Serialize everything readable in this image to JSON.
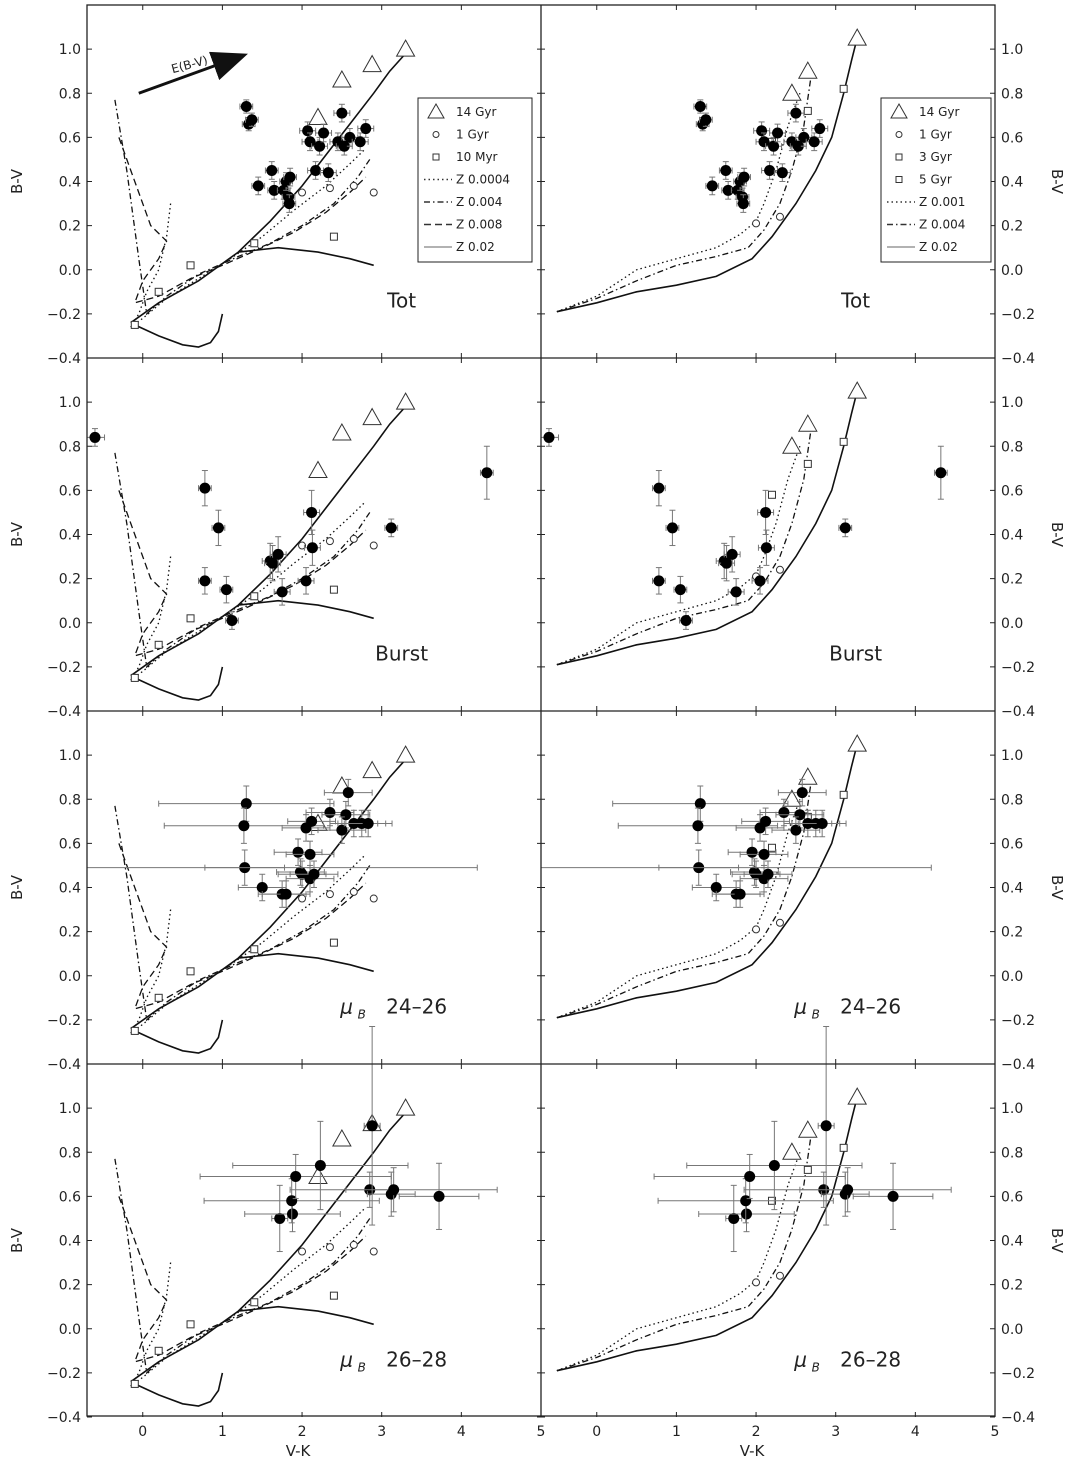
{
  "chart_data": {
    "type": "scatter",
    "xlabel": "V-K",
    "ylabel": "B-V",
    "xlim": [
      -0.7,
      5
    ],
    "ylim": [
      -0.4,
      1.2
    ],
    "xticks": [
      0,
      1,
      2,
      3,
      4,
      5
    ],
    "yticks": [
      -0.4,
      -0.2,
      0.0,
      0.2,
      0.4,
      0.6,
      0.8,
      1.0
    ],
    "ytick_labels": [
      "−0.4",
      "−0.2",
      "0.0",
      "0.2",
      "0.4",
      "0.6",
      "0.8",
      "1.0"
    ],
    "reddening_vector": {
      "label": "E(B-V)",
      "from": [
        -0.05,
        0.8
      ],
      "to": [
        1.25,
        0.97
      ]
    },
    "legends": {
      "left": [
        "14 Gyr",
        "1 Gyr",
        "10 Myr",
        "Z 0.0004",
        "Z 0.004",
        "Z 0.008",
        "Z 0.02"
      ],
      "right": [
        "14 Gyr",
        "1 Gyr",
        "3 Gyr",
        "5 Gyr",
        "Z 0.001",
        "Z 0.004",
        "Z 0.02"
      ]
    },
    "models": {
      "left": [
        {
          "name": "Z 0.0004",
          "style": "dotted",
          "x": [
            0.35,
            0.3,
            0.2,
            0.05,
            -0.05,
            -0.15,
            0.0,
            0.3,
            0.7,
            1.1,
            1.5,
            1.9,
            2.3,
            2.6,
            2.8
          ],
          "y": [
            0.3,
            0.15,
            0.0,
            -0.1,
            -0.2,
            -0.26,
            -0.22,
            -0.13,
            -0.04,
            0.05,
            0.15,
            0.27,
            0.38,
            0.48,
            0.55
          ]
        },
        {
          "name": "Z 0.004",
          "style": "dashdot",
          "x": [
            -0.35,
            -0.2,
            -0.05,
            0.05,
            0.3,
            0.7,
            1.2,
            1.6,
            2.0,
            2.4,
            2.7,
            2.85
          ],
          "y": [
            0.77,
            0.45,
            0.05,
            -0.2,
            -0.12,
            -0.02,
            0.06,
            0.12,
            0.2,
            0.3,
            0.42,
            0.5
          ]
        },
        {
          "name": "Z 0.008",
          "style": "dashed",
          "x": [
            -0.3,
            -0.15,
            0.1,
            0.3,
            0.2,
            0.0,
            -0.1,
            0.2,
            0.6,
            1.0,
            1.5,
            1.9,
            2.3,
            2.6,
            2.8
          ],
          "y": [
            0.6,
            0.45,
            0.2,
            0.13,
            0.05,
            -0.05,
            -0.15,
            -0.12,
            -0.04,
            0.02,
            0.1,
            0.17,
            0.26,
            0.35,
            0.42
          ]
        },
        {
          "name": "Z 0.02",
          "style": "solid",
          "x": [
            -0.15,
            0.2,
            0.7,
            1.2,
            1.6,
            2.0,
            2.3,
            2.6,
            2.9,
            3.1,
            3.3
          ],
          "y": [
            -0.24,
            -0.15,
            -0.05,
            0.08,
            0.22,
            0.38,
            0.52,
            0.66,
            0.8,
            0.9,
            0.98
          ]
        },
        {
          "name": "Z 0.02 loop",
          "style": "solid",
          "x": [
            -0.1,
            0.2,
            0.5,
            0.7,
            0.85,
            0.95,
            1.0
          ],
          "y": [
            -0.25,
            -0.3,
            -0.34,
            -0.35,
            -0.33,
            -0.28,
            -0.2
          ]
        },
        {
          "name": "Z 0.02 branch",
          "style": "solid",
          "x": [
            1.2,
            1.7,
            2.2,
            2.6,
            2.9
          ],
          "y": [
            0.08,
            0.1,
            0.08,
            0.05,
            0.02
          ]
        }
      ],
      "left_ages": {
        "14 Gyr": [
          [
            2.2,
            0.69
          ],
          [
            2.5,
            0.86
          ],
          [
            2.88,
            0.93
          ],
          [
            3.3,
            1.0
          ]
        ],
        "1 Gyr": [
          [
            2.0,
            0.35
          ],
          [
            2.35,
            0.37
          ],
          [
            2.65,
            0.38
          ],
          [
            2.9,
            0.35
          ]
        ],
        "10 Myr": [
          [
            -0.1,
            -0.25
          ],
          [
            0.2,
            -0.1
          ],
          [
            0.6,
            0.02
          ],
          [
            1.4,
            0.12
          ],
          [
            2.4,
            0.15
          ]
        ]
      },
      "right": [
        {
          "name": "Z 0.001",
          "style": "dotted",
          "x": [
            -0.5,
            0.0,
            0.5,
            1.0,
            1.5,
            1.8,
            2.0,
            2.1,
            2.25,
            2.4,
            2.55
          ],
          "y": [
            -0.19,
            -0.12,
            0.0,
            0.05,
            0.1,
            0.16,
            0.22,
            0.3,
            0.45,
            0.65,
            0.8
          ]
        },
        {
          "name": "Z 0.004",
          "style": "dashdot",
          "x": [
            -0.5,
            0.0,
            0.5,
            1.0,
            1.5,
            1.9,
            2.1,
            2.3,
            2.45,
            2.6,
            2.7
          ],
          "y": [
            -0.19,
            -0.13,
            -0.05,
            0.02,
            0.06,
            0.1,
            0.18,
            0.3,
            0.45,
            0.65,
            0.9
          ]
        },
        {
          "name": "Z 0.02",
          "style": "solid",
          "x": [
            -0.5,
            0.0,
            0.5,
            1.0,
            1.5,
            1.95,
            2.2,
            2.5,
            2.75,
            2.95,
            3.1,
            3.2,
            3.27
          ],
          "y": [
            -0.19,
            -0.15,
            -0.1,
            -0.07,
            -0.03,
            0.05,
            0.15,
            0.3,
            0.45,
            0.6,
            0.8,
            0.95,
            1.05
          ]
        }
      ],
      "right_ages": {
        "14 Gyr": [
          [
            2.45,
            0.8
          ],
          [
            2.65,
            0.9
          ],
          [
            3.27,
            1.05
          ]
        ],
        "1 Gyr": [
          [
            2.0,
            0.21
          ],
          [
            2.3,
            0.24
          ]
        ],
        "3 Gyr": [
          [
            2.2,
            0.58
          ]
        ],
        "5 Gyr": [
          [
            3.1,
            0.82
          ],
          [
            2.65,
            0.72
          ]
        ]
      }
    },
    "panels": [
      {
        "label": "Tot",
        "points": [
          {
            "x": 1.3,
            "y": 0.74,
            "ex": 0.08,
            "ey": 0.03
          },
          {
            "x": 1.33,
            "y": 0.66,
            "ex": 0.08,
            "ey": 0.03
          },
          {
            "x": 1.37,
            "y": 0.68,
            "ex": 0.08,
            "ey": 0.03
          },
          {
            "x": 1.45,
            "y": 0.38,
            "ex": 0.08,
            "ey": 0.04
          },
          {
            "x": 1.62,
            "y": 0.45,
            "ex": 0.08,
            "ey": 0.04
          },
          {
            "x": 1.65,
            "y": 0.36,
            "ex": 0.08,
            "ey": 0.04
          },
          {
            "x": 1.77,
            "y": 0.36,
            "ex": 0.08,
            "ey": 0.04
          },
          {
            "x": 1.8,
            "y": 0.4,
            "ex": 0.08,
            "ey": 0.04
          },
          {
            "x": 1.83,
            "y": 0.33,
            "ex": 0.08,
            "ey": 0.04
          },
          {
            "x": 1.84,
            "y": 0.3,
            "ex": 0.08,
            "ey": 0.04
          },
          {
            "x": 1.85,
            "y": 0.42,
            "ex": 0.08,
            "ey": 0.04
          },
          {
            "x": 2.07,
            "y": 0.63,
            "ex": 0.1,
            "ey": 0.04
          },
          {
            "x": 2.1,
            "y": 0.58,
            "ex": 0.1,
            "ey": 0.04
          },
          {
            "x": 2.17,
            "y": 0.45,
            "ex": 0.1,
            "ey": 0.04
          },
          {
            "x": 2.22,
            "y": 0.56,
            "ex": 0.1,
            "ey": 0.04
          },
          {
            "x": 2.27,
            "y": 0.62,
            "ex": 0.1,
            "ey": 0.04
          },
          {
            "x": 2.33,
            "y": 0.44,
            "ex": 0.1,
            "ey": 0.04
          },
          {
            "x": 2.45,
            "y": 0.58,
            "ex": 0.1,
            "ey": 0.04
          },
          {
            "x": 2.5,
            "y": 0.71,
            "ex": 0.1,
            "ey": 0.04
          },
          {
            "x": 2.53,
            "y": 0.56,
            "ex": 0.1,
            "ey": 0.04
          },
          {
            "x": 2.6,
            "y": 0.6,
            "ex": 0.1,
            "ey": 0.04
          },
          {
            "x": 2.73,
            "y": 0.58,
            "ex": 0.1,
            "ey": 0.04
          },
          {
            "x": 2.8,
            "y": 0.64,
            "ex": 0.1,
            "ey": 0.04
          }
        ]
      },
      {
        "label": "Burst",
        "points": [
          {
            "x": -0.6,
            "y": 0.84,
            "ex": 0.12,
            "ey": 0.04
          },
          {
            "x": 0.78,
            "y": 0.61,
            "ex": 0.08,
            "ey": 0.08
          },
          {
            "x": 0.95,
            "y": 0.43,
            "ex": 0.08,
            "ey": 0.08
          },
          {
            "x": 0.78,
            "y": 0.19,
            "ex": 0.08,
            "ey": 0.06
          },
          {
            "x": 1.05,
            "y": 0.15,
            "ex": 0.08,
            "ey": 0.06
          },
          {
            "x": 1.12,
            "y": 0.01,
            "ex": 0.08,
            "ey": 0.04
          },
          {
            "x": 1.6,
            "y": 0.28,
            "ex": 0.1,
            "ey": 0.08
          },
          {
            "x": 1.63,
            "y": 0.27,
            "ex": 0.1,
            "ey": 0.08
          },
          {
            "x": 1.7,
            "y": 0.31,
            "ex": 0.1,
            "ey": 0.08
          },
          {
            "x": 1.75,
            "y": 0.14,
            "ex": 0.1,
            "ey": 0.06
          },
          {
            "x": 2.05,
            "y": 0.19,
            "ex": 0.1,
            "ey": 0.06
          },
          {
            "x": 2.13,
            "y": 0.34,
            "ex": 0.1,
            "ey": 0.08
          },
          {
            "x": 2.12,
            "y": 0.5,
            "ex": 0.1,
            "ey": 0.1
          },
          {
            "x": 3.12,
            "y": 0.43,
            "ex": 0.08,
            "ey": 0.04
          },
          {
            "x": 4.32,
            "y": 0.68,
            "ex": 0.08,
            "ey": 0.12
          }
        ]
      },
      {
        "label": "24–26",
        "label_prefix": "μ",
        "label_sub": "B",
        "points": [
          {
            "x": 1.3,
            "y": 0.78,
            "ex": 1.1,
            "ey": 0.08
          },
          {
            "x": 1.27,
            "y": 0.68,
            "ex": 1.0,
            "ey": 0.08
          },
          {
            "x": 1.28,
            "y": 0.49,
            "ex": 0.5,
            "ey": 0.08
          },
          {
            "x": 1.5,
            "y": 0.4,
            "ex": 0.3,
            "ey": 0.06
          },
          {
            "x": 1.75,
            "y": 0.37,
            "ex": 0.3,
            "ey": 0.06
          },
          {
            "x": 1.8,
            "y": 0.37,
            "ex": 0.3,
            "ey": 0.06
          },
          {
            "x": 1.95,
            "y": 0.56,
            "ex": 0.3,
            "ey": 0.06
          },
          {
            "x": 1.98,
            "y": 0.47,
            "ex": 0.3,
            "ey": 0.06
          },
          {
            "x": 2.0,
            "y": 0.46,
            "ex": 0.3,
            "ey": 0.06
          },
          {
            "x": 2.05,
            "y": 0.67,
            "ex": 0.3,
            "ey": 0.06
          },
          {
            "x": 2.1,
            "y": 0.55,
            "ex": 0.3,
            "ey": 0.06
          },
          {
            "x": 2.1,
            "y": 0.44,
            "ex": 0.3,
            "ey": 0.06
          },
          {
            "x": 2.12,
            "y": 0.7,
            "ex": 0.3,
            "ey": 0.06
          },
          {
            "x": 2.15,
            "y": 0.46,
            "ex": 0.3,
            "ey": 0.06
          },
          {
            "x": 2.35,
            "y": 0.74,
            "ex": 0.3,
            "ey": 0.06
          },
          {
            "x": 2.55,
            "y": 0.73,
            "ex": 0.3,
            "ey": 0.06
          },
          {
            "x": 2.5,
            "y": 0.66,
            "ex": 0.3,
            "ey": 0.06
          },
          {
            "x": 2.58,
            "y": 0.83,
            "ex": 0.3,
            "ey": 0.06
          },
          {
            "x": 2.65,
            "y": 0.69,
            "ex": 0.3,
            "ey": 0.06
          },
          {
            "x": 2.75,
            "y": 0.69,
            "ex": 0.3,
            "ey": 0.06
          },
          {
            "x": 2.83,
            "y": 0.69,
            "ex": 0.3,
            "ey": 0.06
          },
          {
            "x": 1.3,
            "y": 0.49,
            "ex": 2.9,
            "ey": 0.0
          }
        ]
      },
      {
        "label": "26–28",
        "label_prefix": "μ",
        "label_sub": "B",
        "points": [
          {
            "x": 1.72,
            "y": 0.5,
            "ex": 0.1,
            "ey": 0.15
          },
          {
            "x": 1.88,
            "y": 0.52,
            "ex": 0.6,
            "ey": 0.08
          },
          {
            "x": 1.87,
            "y": 0.58,
            "ex": 1.1,
            "ey": 0.1
          },
          {
            "x": 1.92,
            "y": 0.69,
            "ex": 1.2,
            "ey": 0.1
          },
          {
            "x": 2.23,
            "y": 0.74,
            "ex": 1.1,
            "ey": 0.2
          },
          {
            "x": 2.85,
            "y": 0.63,
            "ex": 0.3,
            "ey": 0.08
          },
          {
            "x": 2.88,
            "y": 0.92,
            "ex": 0.1,
            "ey": 0.45
          },
          {
            "x": 3.12,
            "y": 0.61,
            "ex": 0.3,
            "ey": 0.1
          },
          {
            "x": 3.15,
            "y": 0.63,
            "ex": 1.3,
            "ey": 0.1
          },
          {
            "x": 3.72,
            "y": 0.6,
            "ex": 0.5,
            "ey": 0.15
          }
        ]
      }
    ]
  }
}
